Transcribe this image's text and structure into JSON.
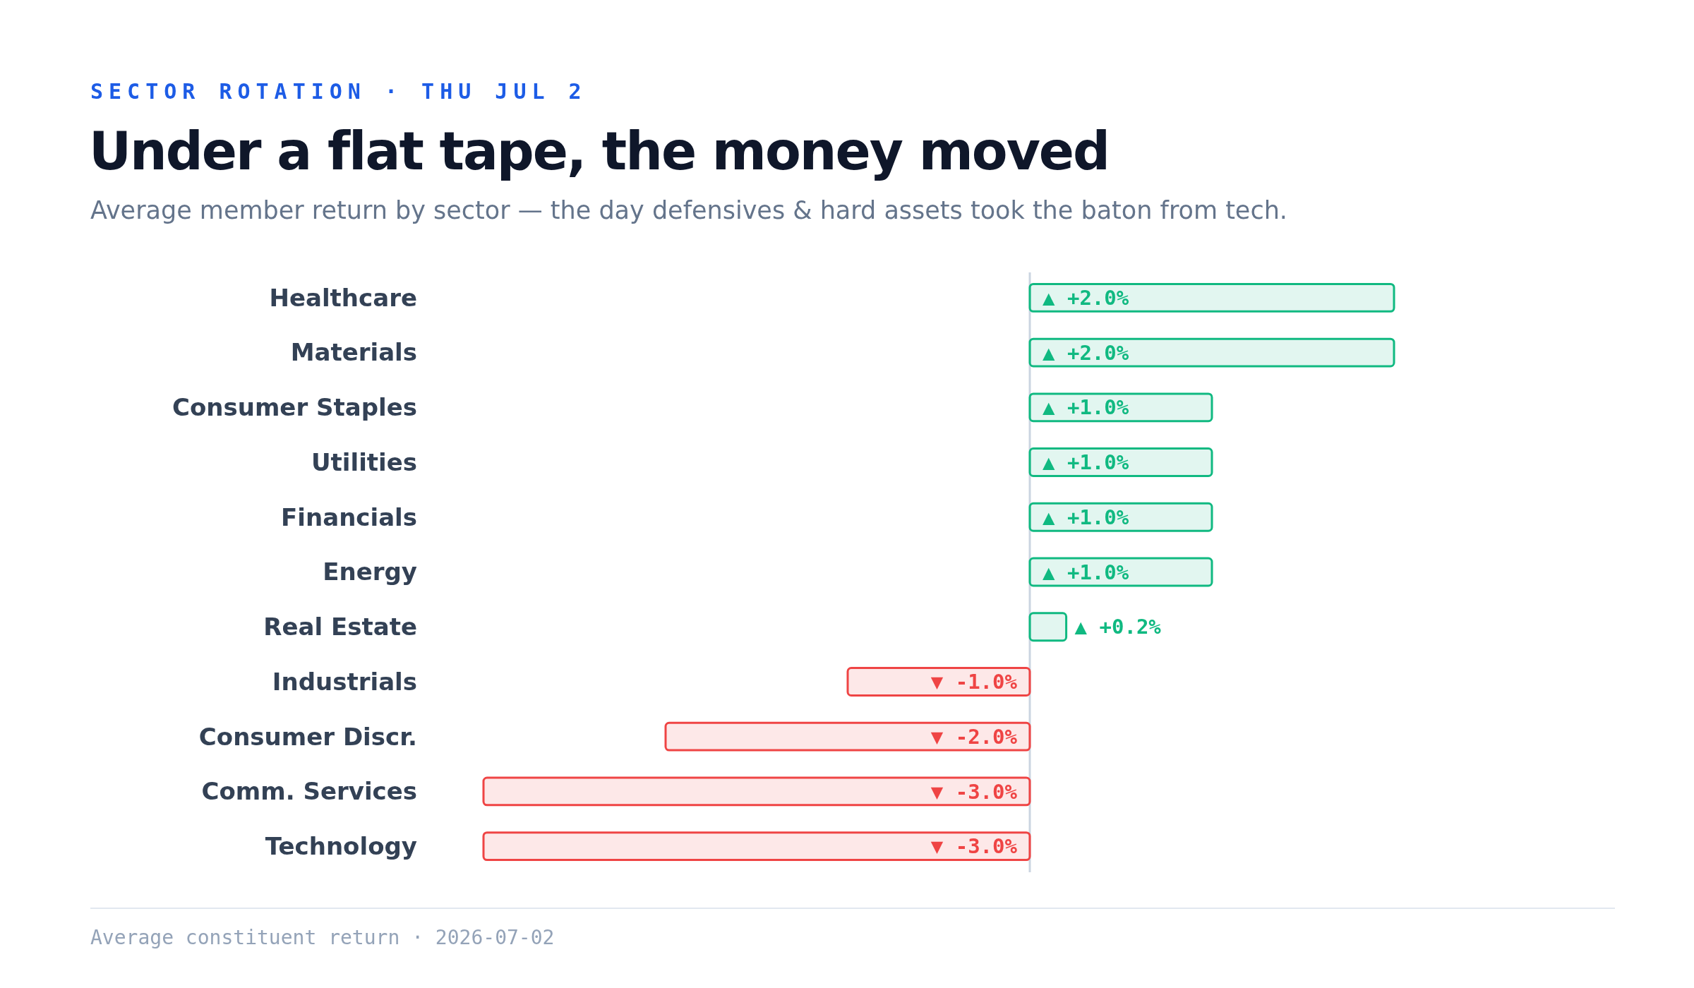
{
  "chart_data": {
    "type": "bar",
    "orientation": "horizontal",
    "title": "Under a flat tape, the money moved",
    "subtitle": "Average member return by sector — the day defensives & hard assets took the baton from tech.",
    "annotations": [
      "SECTOR ROTATION · THU JUL 2",
      "Average constituent return · 2026-07-02"
    ],
    "categories": [
      "Healthcare",
      "Materials",
      "Consumer Staples",
      "Utilities",
      "Financials",
      "Energy",
      "Real Estate",
      "Industrials",
      "Consumer Discr.",
      "Comm. Services",
      "Technology"
    ],
    "values": [
      2.0,
      2.0,
      1.0,
      1.0,
      1.0,
      1.0,
      0.2,
      -1.0,
      -2.0,
      -3.0,
      -3.0
    ],
    "value_labels": [
      "▲ +2.0%",
      "▲ +2.0%",
      "▲ +1.0%",
      "▲ +1.0%",
      "▲ +1.0%",
      "▲ +1.0%",
      "▲ +0.2%",
      "▼ -1.0%",
      "▼ -2.0%",
      "▼ -3.0%",
      "▼ -3.0%"
    ],
    "colors": [
      "#10b981",
      "#10b981",
      "#10b981",
      "#10b981",
      "#10b981",
      "#10b981",
      "#10b981",
      "#ef4444",
      "#ef4444",
      "#ef4444",
      "#ef4444"
    ]
  }
}
